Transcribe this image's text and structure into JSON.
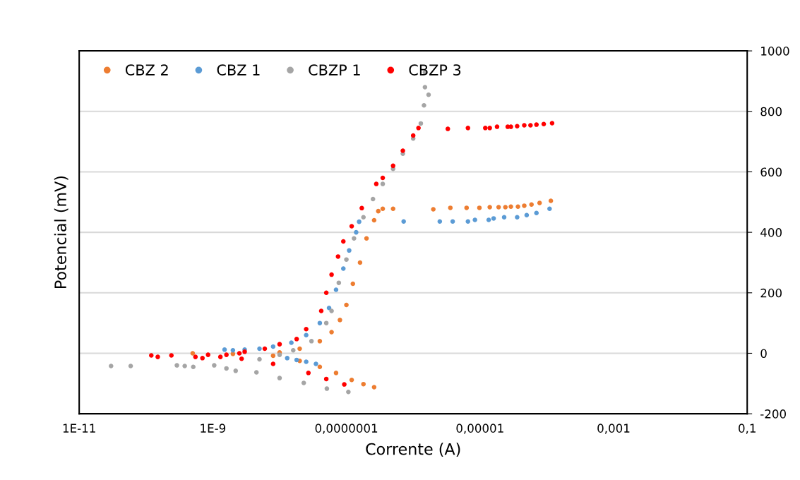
{
  "chart_data": {
    "type": "scatter",
    "xlabel": "Corrente (A)",
    "ylabel": "Potencial (mV)",
    "log": "x",
    "xlim": [
      1e-11,
      0.1
    ],
    "xticks": [
      {
        "value": 1e-11,
        "label": "1E-11"
      },
      {
        "value": 1e-09,
        "label": "1E-9"
      },
      {
        "value": 1e-07,
        "label": "0,0000001"
      },
      {
        "value": 1e-05,
        "label": "0,00001"
      },
      {
        "value": 0.001,
        "label": "0,001"
      },
      {
        "value": 0.1,
        "label": "0,1"
      }
    ],
    "ylim": [
      -200,
      1000
    ],
    "yticks": [
      -200,
      0,
      200,
      400,
      600,
      800,
      1000
    ],
    "grid": "y",
    "legend": "top left",
    "marker": "circle",
    "series": [
      {
        "name": "CBZ 2",
        "color": "#ed7d31",
        "x": [
          5e-10,
          2e-09,
          8e-09,
          2e-08,
          4e-08,
          7e-08,
          1.2e-07,
          1.8e-07,
          2.6e-07,
          1e-08,
          2e-08,
          4e-08,
          6e-08,
          8e-08,
          1e-07,
          1.25e-07,
          1.6e-07,
          2e-07,
          2.6e-07,
          3e-07,
          3.5e-07,
          5e-07,
          2e-06,
          3.6e-06,
          6.3e-06,
          9.8e-06,
          1.4e-05,
          1.9e-05,
          2.4e-05,
          2.9e-05,
          3.7e-05,
          4.6e-05,
          5.9e-05,
          7.8e-05,
          0.000115
        ],
        "values": [
          0,
          -2,
          -8,
          -25,
          -45,
          -65,
          -88,
          -102,
          -112,
          3,
          15,
          40,
          70,
          110,
          160,
          230,
          300,
          380,
          440,
          470,
          478,
          478,
          476,
          481,
          481,
          481,
          483,
          483,
          483,
          485,
          485,
          488,
          492,
          497,
          504
        ]
      },
      {
        "name": "CBZ 1",
        "color": "#5b9bd5",
        "x": [
          1.3e-08,
          1.8e-08,
          2.5e-08,
          3.5e-08,
          1.5e-09,
          2e-09,
          3e-09,
          5e-09,
          8e-09,
          1.5e-08,
          2.5e-08,
          4e-08,
          5.5e-08,
          7e-08,
          9e-08,
          1.1e-07,
          1.4e-07,
          1.55e-07,
          7.2e-07,
          2.5e-06,
          3.9e-06,
          6.6e-06,
          8.4e-06,
          1.35e-05,
          1.6e-05,
          2.3e-05,
          3.6e-05,
          5e-05,
          7e-05,
          0.00011
        ],
        "values": [
          -16,
          -22,
          -28,
          -35,
          12,
          10,
          12,
          15,
          22,
          35,
          60,
          100,
          150,
          210,
          280,
          340,
          400,
          435,
          436,
          436,
          436,
          436,
          441,
          441,
          446,
          450,
          450,
          457,
          464,
          478
        ]
      },
      {
        "name": "CBZP 1",
        "color": "#a5a5a5",
        "x": [
          3e-11,
          5.9e-11,
          2.9e-10,
          3.8e-10,
          5.1e-10,
          1.05e-09,
          1.6e-09,
          2.2e-09,
          4.5e-09,
          1e-08,
          2.3e-08,
          5.1e-08,
          1.07e-07,
          5e-09,
          1e-08,
          1.6e-08,
          3e-08,
          5e-08,
          6e-08,
          7.7e-08,
          1e-07,
          1.3e-07,
          1.8e-07,
          2.5e-07,
          3.5e-07,
          5e-07,
          7e-07,
          1e-06,
          1.3e-06,
          1.45e-06,
          1.5e-06,
          1.5e-06,
          1.7e-06
        ],
        "values": [
          -42,
          -42,
          -40,
          -42,
          -45,
          -40,
          -50,
          -58,
          -63,
          -82,
          -98,
          -117,
          -128,
          -20,
          -5,
          10,
          40,
          100,
          140,
          233,
          310,
          380,
          450,
          510,
          560,
          610,
          660,
          710,
          760,
          820,
          880,
          929,
          855
        ]
      },
      {
        "name": "CBZP 3",
        "color": "#ff0000",
        "x": [
          1.2e-10,
          1.5e-10,
          2.4e-10,
          5.5e-10,
          7e-10,
          8.5e-10,
          1.3e-09,
          1.6e-09,
          2.5e-09,
          2.7e-09,
          8e-09,
          2.7e-08,
          5e-08,
          9.3e-08,
          3e-09,
          6e-09,
          1e-08,
          1.8e-08,
          2.5e-08,
          4.2e-08,
          5e-08,
          6e-08,
          7.5e-08,
          9e-08,
          1.2e-07,
          1.7e-07,
          2.8e-07,
          3.5e-07,
          5e-07,
          7e-07,
          1e-06,
          1.2e-06,
          3.3e-06,
          6.6e-06,
          1.2e-05,
          1.4e-05,
          1.8e-05,
          2.6e-05,
          2.9e-05,
          3.6e-05,
          4.6e-05,
          5.7e-05,
          7e-05,
          9e-05,
          0.00012
        ],
        "values": [
          -7,
          -12,
          -7,
          -12,
          -16,
          -5,
          -12,
          -5,
          0,
          -18,
          -35,
          -65,
          -85,
          -103,
          5,
          15,
          30,
          47,
          80,
          140,
          200,
          260,
          320,
          370,
          420,
          480,
          560,
          580,
          620,
          670,
          720,
          745,
          742,
          745,
          745,
          745,
          749,
          749,
          749,
          751,
          754,
          754,
          756,
          758,
          761
        ]
      }
    ]
  }
}
